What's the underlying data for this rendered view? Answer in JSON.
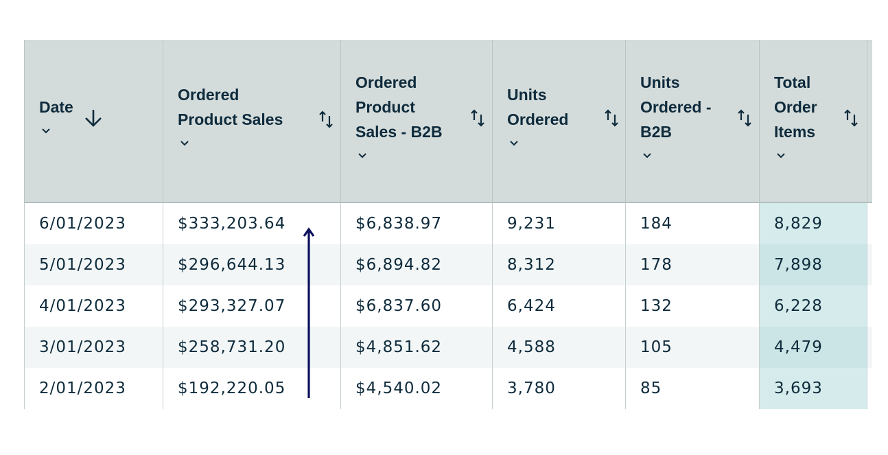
{
  "table": {
    "columns": [
      {
        "label": "Date",
        "sort_icon": "arrow-down-icon",
        "dropdown_icon": "chevron-down-icon"
      },
      {
        "label": "Ordered\nProduct Sales",
        "sort_icon": "sort-updown-icon",
        "dropdown_icon": "chevron-down-icon"
      },
      {
        "label": "Ordered\nProduct\nSales - B2B",
        "sort_icon": "sort-updown-icon",
        "dropdown_icon": "chevron-down-icon"
      },
      {
        "label": "Units\nOrdered",
        "sort_icon": "sort-updown-icon",
        "dropdown_icon": "chevron-down-icon"
      },
      {
        "label": "Units\nOrdered -\nB2B",
        "sort_icon": "sort-updown-icon",
        "dropdown_icon": "chevron-down-icon"
      },
      {
        "label": "Total\nOrder\nItems",
        "sort_icon": "sort-updown-icon",
        "dropdown_icon": "chevron-down-icon"
      }
    ],
    "rows": [
      [
        "6/01/2023",
        "$333,203.64",
        "$6,838.97",
        "9,231",
        "184",
        "8,829"
      ],
      [
        "5/01/2023",
        "$296,644.13",
        "$6,894.82",
        "8,312",
        "178",
        "7,898"
      ],
      [
        "4/01/2023",
        "$293,327.07",
        "$6,837.60",
        "6,424",
        "132",
        "6,228"
      ],
      [
        "3/01/2023",
        "$258,731.20",
        "$4,851.62",
        "4,588",
        "105",
        "4,479"
      ],
      [
        "2/01/2023",
        "$192,220.05",
        "$4,540.02",
        "3,780",
        "85",
        "3,693"
      ]
    ],
    "highlight_column_color": "#d6ecec"
  },
  "annotation": {
    "type": "upward-arrow",
    "icon": "trend-arrow-up-icon",
    "color": "#0b0f5c"
  }
}
